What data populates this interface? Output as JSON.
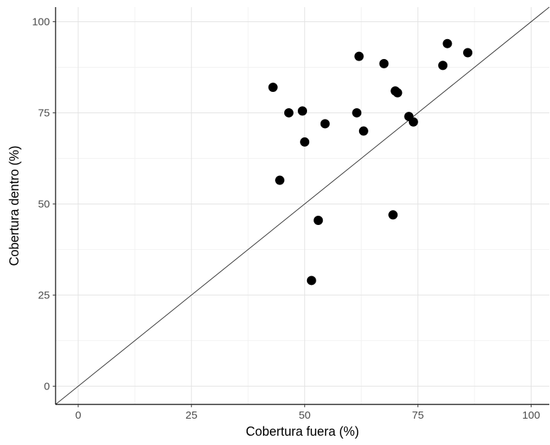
{
  "chart_data": {
    "type": "scatter",
    "xlabel": "Cobertura fuera (%)",
    "ylabel": "Cobertura dentro (%)",
    "xlim": [
      -5,
      104
    ],
    "ylim": [
      -5,
      104
    ],
    "x_ticks": [
      0,
      25,
      50,
      75,
      100
    ],
    "y_ticks": [
      0,
      25,
      50,
      75,
      100
    ],
    "grid": true,
    "reference_line": {
      "kind": "identity",
      "slope": 1,
      "intercept": 0,
      "color": "#333333"
    },
    "point_color": "#000000",
    "points": [
      {
        "x": 43.0,
        "y": 82.0
      },
      {
        "x": 44.5,
        "y": 56.5
      },
      {
        "x": 46.5,
        "y": 75.0
      },
      {
        "x": 49.5,
        "y": 75.5
      },
      {
        "x": 50.0,
        "y": 67.0
      },
      {
        "x": 51.5,
        "y": 29.0
      },
      {
        "x": 53.0,
        "y": 45.5
      },
      {
        "x": 54.5,
        "y": 72.0
      },
      {
        "x": 61.5,
        "y": 75.0
      },
      {
        "x": 62.0,
        "y": 90.5
      },
      {
        "x": 63.0,
        "y": 70.0
      },
      {
        "x": 67.5,
        "y": 88.5
      },
      {
        "x": 69.5,
        "y": 47.0
      },
      {
        "x": 70.0,
        "y": 81.0
      },
      {
        "x": 70.5,
        "y": 80.5
      },
      {
        "x": 73.0,
        "y": 74.0
      },
      {
        "x": 74.0,
        "y": 72.5
      },
      {
        "x": 80.5,
        "y": 88.0
      },
      {
        "x": 81.5,
        "y": 94.0
      },
      {
        "x": 86.0,
        "y": 91.5
      }
    ]
  }
}
